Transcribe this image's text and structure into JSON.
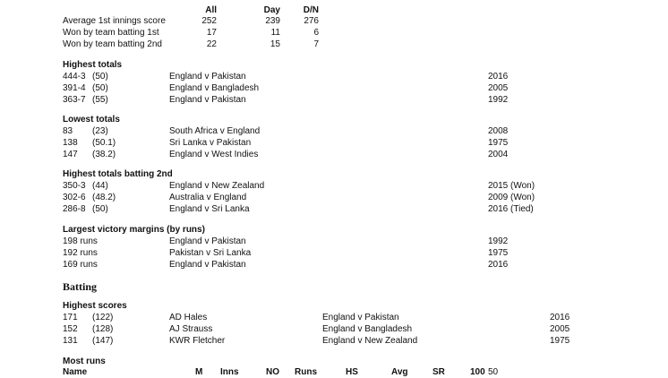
{
  "summary": {
    "headers": [
      "All",
      "Day",
      "D/N"
    ],
    "rows": [
      {
        "label": "Average 1st innings score",
        "values": [
          "252",
          "239",
          "276"
        ]
      },
      {
        "label": "Won by team batting 1st",
        "values": [
          "17",
          "11",
          "6"
        ]
      },
      {
        "label": "Won by team batting 2nd",
        "values": [
          "22",
          "15",
          "7"
        ]
      }
    ]
  },
  "highest_totals": {
    "title": "Highest totals",
    "rows": [
      {
        "score": "444-3",
        "overs": "(50)",
        "match": "England v Pakistan",
        "year": "2016"
      },
      {
        "score": "391-4",
        "overs": "(50)",
        "match": "England v Bangladesh",
        "year": "2005"
      },
      {
        "score": "363-7",
        "overs": "(55)",
        "match": "England v Pakistan",
        "year": "1992"
      }
    ]
  },
  "lowest_totals": {
    "title": "Lowest totals",
    "rows": [
      {
        "score": "83",
        "overs": "(23)",
        "match": "South Africa v England",
        "year": "2008"
      },
      {
        "score": "138",
        "overs": "(50.1)",
        "match": "Sri Lanka v Pakistan",
        "year": "1975"
      },
      {
        "score": "147",
        "overs": "(38.2)",
        "match": "England v West Indies",
        "year": "2004"
      }
    ]
  },
  "highest_totals_batting_2nd": {
    "title": "Highest totals batting 2nd",
    "rows": [
      {
        "score": "350-3",
        "overs": "(44)",
        "match": "England v New Zealand",
        "year": "2015 (Won)"
      },
      {
        "score": "302-6",
        "overs": "(48.2)",
        "match": "Australia v England",
        "year": "2009 (Won)"
      },
      {
        "score": "286-8",
        "overs": "(50)",
        "match": "England v Sri Lanka",
        "year": "2016 (Tied)"
      }
    ]
  },
  "largest_victory_margins": {
    "title": "Largest victory margins (by runs)",
    "rows": [
      {
        "margin": "198 runs",
        "match": "England v Pakistan",
        "year": "1992"
      },
      {
        "margin": "192 runs",
        "match": "Pakistan v Sri Lanka",
        "year": "1975"
      },
      {
        "margin": "169 runs",
        "match": "England v Pakistan",
        "year": "2016"
      }
    ]
  },
  "batting": {
    "heading": "Batting",
    "highest_scores": {
      "title": "Highest scores",
      "rows": [
        {
          "score": "171",
          "balls": "(122)",
          "player": "AD Hales",
          "match": "England v Pakistan",
          "year": "2016"
        },
        {
          "score": "152",
          "balls": "(128)",
          "player": "AJ Strauss",
          "match": "England v Bangladesh",
          "year": "2005"
        },
        {
          "score": "131",
          "balls": "(147)",
          "player": "KWR Fletcher",
          "match": "England v New Zealand",
          "year": "1975"
        }
      ]
    },
    "most_runs": {
      "title": "Most runs",
      "headers": [
        "Name",
        "M",
        "Inns",
        "NO",
        "Runs",
        "HS",
        "Avg",
        "SR",
        "100",
        "50"
      ]
    }
  }
}
